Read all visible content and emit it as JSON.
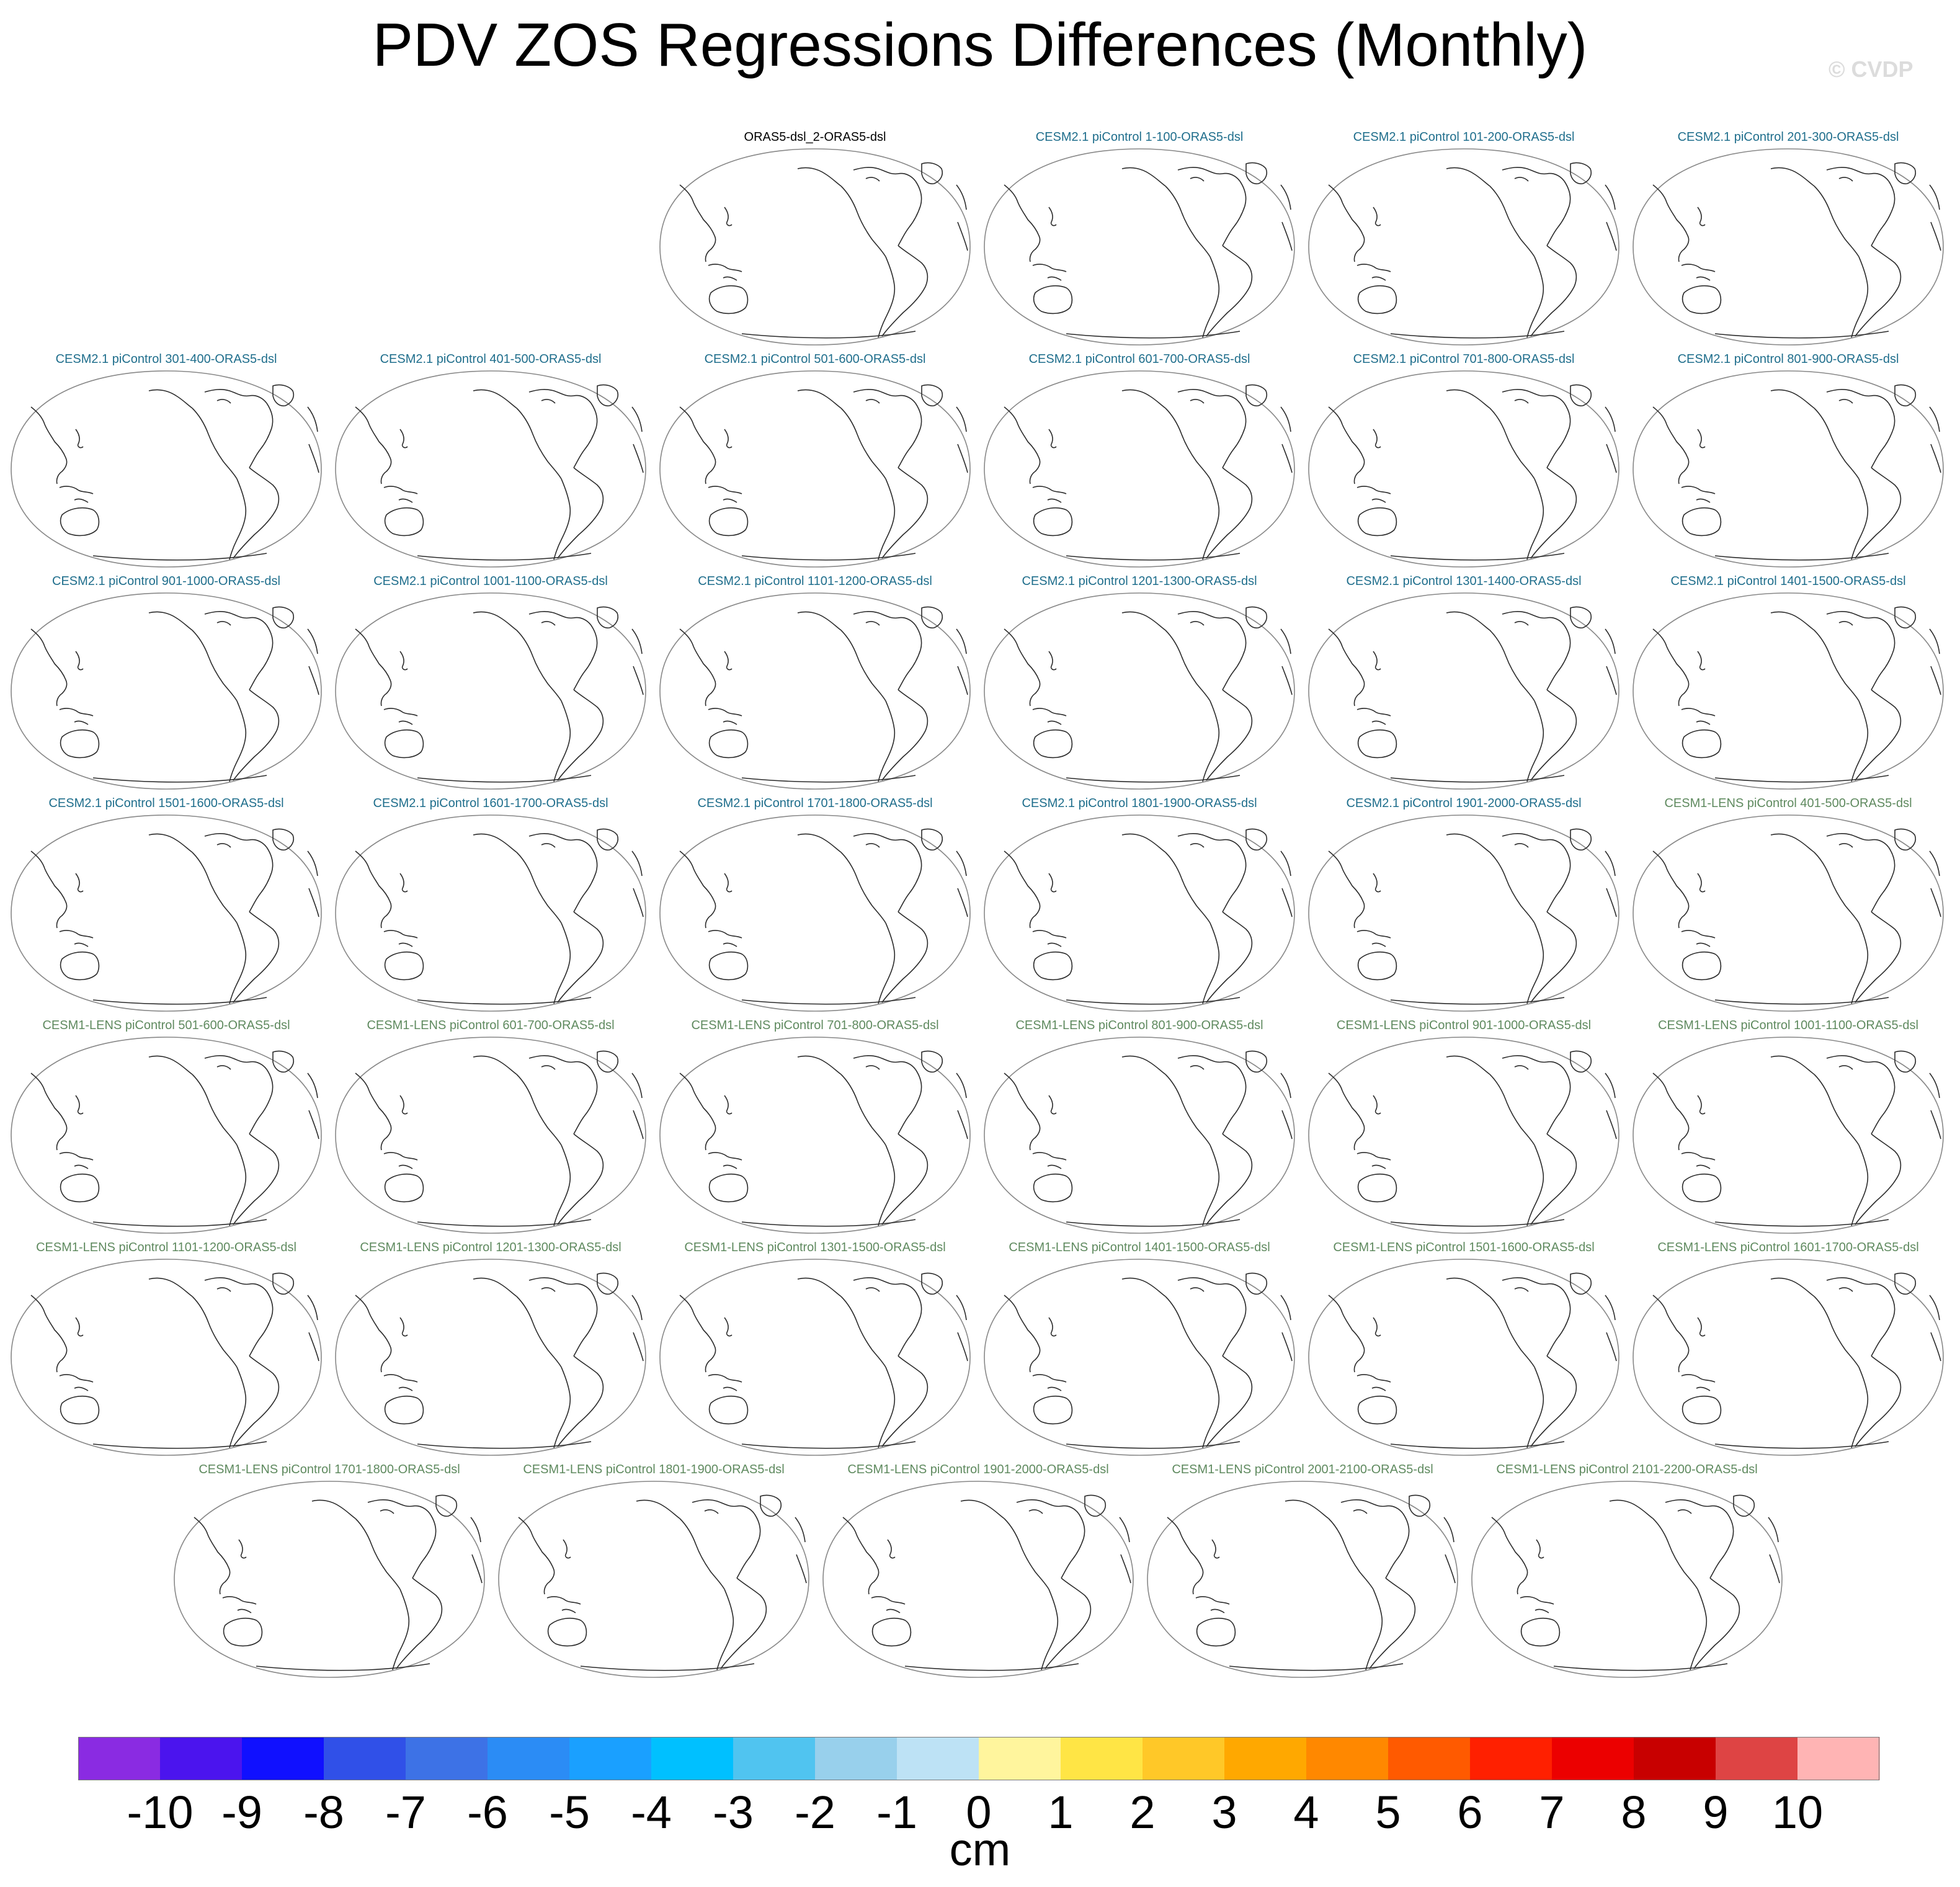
{
  "title": "PDV ZOS Regressions Differences (Monthly)",
  "watermark": "© CVDP",
  "colors": {
    "obs_title": "#000000",
    "cesm2_title": "#1f6e8c",
    "cesm1_title": "#5f8a5f",
    "map_outline": "#888888",
    "coast": "#2b2b2b"
  },
  "chart_data": {
    "type": "map-panels",
    "projection": "Robinson, centered on Pacific",
    "panels": [
      {
        "label": "ORAS5-dsl_2-ORAS5-dsl",
        "group": "obs"
      },
      {
        "label": "CESM2.1 piControl 1-100-ORAS5-dsl",
        "group": "cesm2"
      },
      {
        "label": "CESM2.1 piControl 101-200-ORAS5-dsl",
        "group": "cesm2"
      },
      {
        "label": "CESM2.1 piControl 201-300-ORAS5-dsl",
        "group": "cesm2"
      },
      {
        "label": "CESM2.1 piControl 301-400-ORAS5-dsl",
        "group": "cesm2"
      },
      {
        "label": "CESM2.1 piControl 401-500-ORAS5-dsl",
        "group": "cesm2"
      },
      {
        "label": "CESM2.1 piControl 501-600-ORAS5-dsl",
        "group": "cesm2"
      },
      {
        "label": "CESM2.1 piControl 601-700-ORAS5-dsl",
        "group": "cesm2"
      },
      {
        "label": "CESM2.1 piControl 701-800-ORAS5-dsl",
        "group": "cesm2"
      },
      {
        "label": "CESM2.1 piControl 801-900-ORAS5-dsl",
        "group": "cesm2"
      },
      {
        "label": "CESM2.1 piControl 901-1000-ORAS5-dsl",
        "group": "cesm2"
      },
      {
        "label": "CESM2.1 piControl 1001-1100-ORAS5-dsl",
        "group": "cesm2"
      },
      {
        "label": "CESM2.1 piControl 1101-1200-ORAS5-dsl",
        "group": "cesm2"
      },
      {
        "label": "CESM2.1 piControl 1201-1300-ORAS5-dsl",
        "group": "cesm2"
      },
      {
        "label": "CESM2.1 piControl 1301-1400-ORAS5-dsl",
        "group": "cesm2"
      },
      {
        "label": "CESM2.1 piControl 1401-1500-ORAS5-dsl",
        "group": "cesm2"
      },
      {
        "label": "CESM2.1 piControl 1501-1600-ORAS5-dsl",
        "group": "cesm2"
      },
      {
        "label": "CESM2.1 piControl 1601-1700-ORAS5-dsl",
        "group": "cesm2"
      },
      {
        "label": "CESM2.1 piControl 1701-1800-ORAS5-dsl",
        "group": "cesm2"
      },
      {
        "label": "CESM2.1 piControl 1801-1900-ORAS5-dsl",
        "group": "cesm2"
      },
      {
        "label": "CESM2.1 piControl 1901-2000-ORAS5-dsl",
        "group": "cesm2"
      },
      {
        "label": "CESM1-LENS piControl 401-500-ORAS5-dsl",
        "group": "cesm1"
      },
      {
        "label": "CESM1-LENS piControl 501-600-ORAS5-dsl",
        "group": "cesm1"
      },
      {
        "label": "CESM1-LENS piControl 601-700-ORAS5-dsl",
        "group": "cesm1"
      },
      {
        "label": "CESM1-LENS piControl 701-800-ORAS5-dsl",
        "group": "cesm1"
      },
      {
        "label": "CESM1-LENS piControl 801-900-ORAS5-dsl",
        "group": "cesm1"
      },
      {
        "label": "CESM1-LENS piControl 901-1000-ORAS5-dsl",
        "group": "cesm1"
      },
      {
        "label": "CESM1-LENS piControl 1001-1100-ORAS5-dsl",
        "group": "cesm1"
      },
      {
        "label": "CESM1-LENS piControl 1101-1200-ORAS5-dsl",
        "group": "cesm1"
      },
      {
        "label": "CESM1-LENS piControl 1201-1300-ORAS5-dsl",
        "group": "cesm1"
      },
      {
        "label": "CESM1-LENS piControl 1301-1500-ORAS5-dsl",
        "group": "cesm1"
      },
      {
        "label": "CESM1-LENS piControl 1401-1500-ORAS5-dsl",
        "group": "cesm1"
      },
      {
        "label": "CESM1-LENS piControl 1501-1600-ORAS5-dsl",
        "group": "cesm1"
      },
      {
        "label": "CESM1-LENS piControl 1601-1700-ORAS5-dsl",
        "group": "cesm1"
      },
      {
        "label": "CESM1-LENS piControl 1701-1800-ORAS5-dsl",
        "group": "cesm1"
      },
      {
        "label": "CESM1-LENS piControl 1801-1900-ORAS5-dsl",
        "group": "cesm1"
      },
      {
        "label": "CESM1-LENS piControl 1901-2000-ORAS5-dsl",
        "group": "cesm1"
      },
      {
        "label": "CESM1-LENS piControl 2001-2100-ORAS5-dsl",
        "group": "cesm1"
      },
      {
        "label": "CESM1-LENS piControl 2101-2200-ORAS5-dsl",
        "group": "cesm1"
      }
    ],
    "colorbar": {
      "units": "cm",
      "ticks": [
        "-10",
        "-9",
        "-8",
        "-7",
        "-6",
        "-5",
        "-4",
        "-3",
        "-2",
        "-1",
        "0",
        "1",
        "2",
        "3",
        "4",
        "5",
        "6",
        "7",
        "8",
        "9",
        "10"
      ],
      "colors": [
        "#8a2be2",
        "#4b14ee",
        "#1010ff",
        "#3050e8",
        "#3d72e6",
        "#2b8cf5",
        "#1aa0ff",
        "#00c0ff",
        "#50c4f0",
        "#98d0ec",
        "#bde2f5",
        "#fff59d",
        "#ffe545",
        "#ffc828",
        "#ffa800",
        "#ff8800",
        "#ff5a00",
        "#ff2000",
        "#ec0000",
        "#c80000",
        "#de4444",
        "#ffb4b4"
      ]
    }
  }
}
